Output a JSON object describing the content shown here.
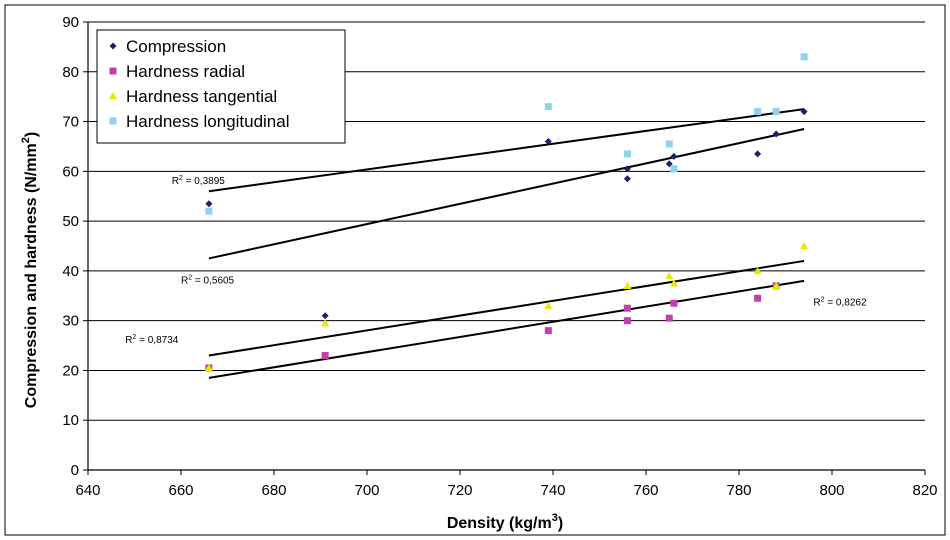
{
  "chart_data": {
    "type": "scatter",
    "xlabel_base": "Density (kg/m",
    "xlabel_sup": "3",
    "xlabel_end": ")",
    "ylabel_base": "Compression and hardness (N/mm",
    "ylabel_sup": "2",
    "ylabel_end": ")",
    "xlim": [
      640,
      820
    ],
    "ylim": [
      0,
      90
    ],
    "x_ticks": [
      "640",
      "660",
      "680",
      "700",
      "720",
      "740",
      "760",
      "780",
      "800",
      "820"
    ],
    "y_ticks": [
      "0",
      "10",
      "20",
      "30",
      "40",
      "50",
      "60",
      "70",
      "80",
      "90"
    ],
    "grid": "horizontal",
    "legend_position": "top-left",
    "series": [
      {
        "name": "Compression",
        "color": "#1f1f6e",
        "marker": "diamond",
        "points": [
          [
            666,
            53.5
          ],
          [
            691,
            31
          ],
          [
            739,
            66
          ],
          [
            756,
            58.5
          ],
          [
            756,
            60.5
          ],
          [
            765,
            61.5
          ],
          [
            766,
            63
          ],
          [
            784,
            63.5
          ],
          [
            788,
            67.5
          ],
          [
            794,
            72
          ]
        ]
      },
      {
        "name": "Hardness radial",
        "color": "#c040b0",
        "marker": "square",
        "points": [
          [
            666,
            20.5
          ],
          [
            691,
            23
          ],
          [
            739,
            28
          ],
          [
            756,
            30
          ],
          [
            756,
            32.5
          ],
          [
            765,
            30.5
          ],
          [
            766,
            33.5
          ],
          [
            784,
            34.5
          ],
          [
            788,
            37
          ]
        ]
      },
      {
        "name": "Hardness tangential",
        "color": "#e8e800",
        "marker": "triangle",
        "points": [
          [
            666,
            20.5
          ],
          [
            691,
            29.5
          ],
          [
            739,
            33
          ],
          [
            756,
            37
          ],
          [
            765,
            39
          ],
          [
            766,
            37.5
          ],
          [
            784,
            40
          ],
          [
            788,
            37
          ],
          [
            794,
            45
          ]
        ]
      },
      {
        "name": "Hardness longitudinal",
        "color": "#8ed3ee",
        "marker": "square",
        "points": [
          [
            666,
            52
          ],
          [
            739,
            73
          ],
          [
            756,
            63.5
          ],
          [
            765,
            65.5
          ],
          [
            766,
            60.5
          ],
          [
            784,
            72
          ],
          [
            788,
            72
          ],
          [
            794,
            83
          ]
        ]
      }
    ],
    "trendlines": [
      {
        "from": [
          666,
          56
        ],
        "to": [
          794,
          72.5
        ]
      },
      {
        "from": [
          666,
          42.5
        ],
        "to": [
          794,
          68.5
        ]
      },
      {
        "from": [
          666,
          23
        ],
        "to": [
          794,
          42
        ]
      },
      {
        "from": [
          666,
          18.5
        ],
        "to": [
          794,
          38
        ]
      }
    ],
    "annotations": [
      {
        "label": "R",
        "sup": "2",
        "value": " = 0,3895",
        "x": 658,
        "y": 57.5
      },
      {
        "label": "R",
        "sup": "2",
        "value": " = 0,5605",
        "x": 660,
        "y": 37.5
      },
      {
        "label": "R",
        "sup": "2",
        "value": " = 0,8734",
        "x": 648,
        "y": 25.5
      },
      {
        "label": "R",
        "sup": "2",
        "value": " = 0,8262",
        "x": 796,
        "y": 33
      }
    ]
  }
}
